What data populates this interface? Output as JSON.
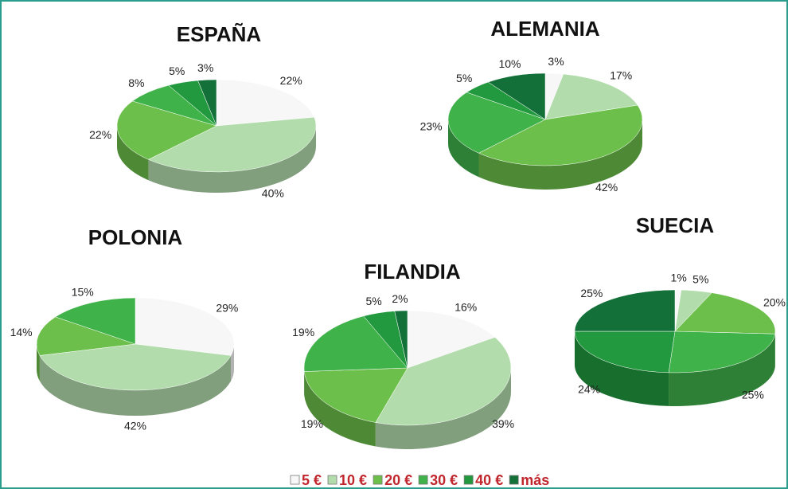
{
  "legend": {
    "labels": [
      "5 €",
      "10 €",
      "20 €",
      "30 €",
      "40 €",
      "más"
    ],
    "colors": [
      "#f7f7f7",
      "#b3dcad",
      "#6dbf4b",
      "#3fb24a",
      "#22993e",
      "#137039"
    ]
  },
  "chart_data": [
    {
      "type": "pie",
      "title": "ESPAÑA",
      "values": [
        22,
        40,
        22,
        8,
        5,
        3
      ],
      "value_labels": [
        "22%",
        "40%",
        "22%",
        "8%",
        "5%",
        "3%"
      ]
    },
    {
      "type": "pie",
      "title": "ALEMANIA",
      "values": [
        3,
        17,
        42,
        23,
        5,
        10
      ],
      "value_labels": [
        "3%",
        "17%",
        "42%",
        "23%",
        "5%",
        "10%"
      ]
    },
    {
      "type": "pie",
      "title": "POLONIA",
      "values": [
        29,
        42,
        14,
        15,
        null,
        null
      ],
      "value_labels": [
        "29%",
        "42%",
        "14%",
        "15%",
        null,
        null
      ]
    },
    {
      "type": "pie",
      "title": "FILANDIA",
      "values": [
        16,
        39,
        19,
        19,
        5,
        2
      ],
      "value_labels": [
        "16%",
        "39%",
        "19%",
        "19%",
        "5%",
        "2%"
      ]
    },
    {
      "type": "pie",
      "title": "SUECIA",
      "values": [
        1,
        5,
        20,
        25,
        24,
        25
      ],
      "value_labels": [
        "1%",
        "5%",
        "20%",
        "25%",
        "24%",
        "25%"
      ]
    }
  ]
}
